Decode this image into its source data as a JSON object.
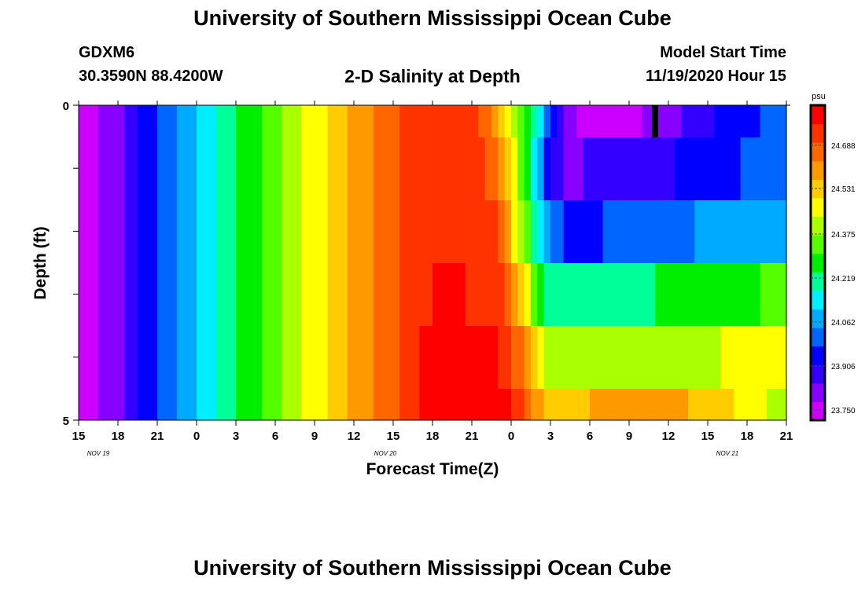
{
  "page": {
    "title_top": "University of Southern Mississippi Ocean Cube",
    "title_bottom": "University of Southern Mississippi Ocean Cube",
    "station": "GDXM6",
    "coords": "30.3590N 88.4200W",
    "subtitle": "2-D Salinity at Depth",
    "model_start_label": "Model Start Time",
    "model_start_value": "11/19/2020 Hour 15"
  },
  "chart_data": {
    "type": "heatmap",
    "title": "2-D Salinity at Depth",
    "xlabel": "Forecast Time(Z)",
    "ylabel": "Depth (ft)",
    "x_tick_labels": [
      "15",
      "18",
      "21",
      "0",
      "3",
      "6",
      "9",
      "12",
      "15",
      "18",
      "21",
      "0",
      "3",
      "6",
      "9",
      "12",
      "15",
      "18",
      "21"
    ],
    "date_labels": [
      "NOV 19",
      "NOV 20",
      "NOV 21"
    ],
    "y_tick_labels": [
      "0",
      "5"
    ],
    "ylim": [
      0,
      5
    ],
    "colorbar": {
      "unit": "psu",
      "tick_labels": [
        "24.688",
        "24.531",
        "24.375",
        "24.219",
        "24.062",
        "23.906",
        "23.750"
      ],
      "range": [
        23.69,
        24.84
      ],
      "colors": [
        "#cc00ff",
        "#8800ff",
        "#3300ff",
        "#0000ff",
        "#0066ff",
        "#00aaff",
        "#00eeff",
        "#00ff99",
        "#00ee00",
        "#55ff00",
        "#aaff00",
        "#ffff00",
        "#ffcc00",
        "#ff9900",
        "#ff6600",
        "#ff3300",
        "#ff0000"
      ]
    },
    "depth_layers": [
      0,
      1,
      2,
      3,
      4
    ],
    "series": [
      {
        "depth": 0,
        "times": [
          0,
          3,
          6,
          8,
          10,
          12,
          14,
          16,
          18,
          20,
          22,
          24,
          26,
          28,
          30,
          32,
          33,
          34,
          35,
          36,
          37,
          38,
          39,
          40,
          42,
          44,
          46,
          48,
          50,
          52,
          54
        ],
        "values": [
          23.72,
          23.8,
          23.97,
          24.05,
          24.13,
          24.23,
          24.3,
          24.39,
          24.47,
          24.55,
          24.62,
          24.69,
          24.75,
          24.77,
          24.72,
          24.6,
          24.45,
          24.3,
          24.15,
          23.98,
          23.85,
          23.75,
          23.72,
          23.72,
          23.74,
          23.77,
          23.82,
          23.88,
          23.93,
          23.96,
          23.98
        ]
      },
      {
        "depth": 1,
        "times": [
          0,
          3,
          6,
          8,
          10,
          12,
          14,
          16,
          18,
          20,
          22,
          24,
          26,
          28,
          30,
          32,
          33,
          34,
          35,
          36,
          37,
          38,
          39,
          40,
          42,
          44,
          46,
          48,
          50,
          52,
          54
        ],
        "values": [
          23.72,
          23.8,
          23.97,
          24.05,
          24.13,
          24.23,
          24.3,
          24.39,
          24.47,
          24.55,
          24.62,
          24.69,
          24.75,
          24.77,
          24.74,
          24.65,
          24.5,
          24.3,
          24.1,
          23.85,
          23.82,
          23.82,
          23.83,
          23.84,
          23.86,
          23.88,
          23.9,
          23.92,
          23.95,
          23.98,
          24.0
        ]
      },
      {
        "depth": 2,
        "times": [
          0,
          3,
          6,
          8,
          10,
          12,
          14,
          16,
          18,
          20,
          22,
          24,
          26,
          28,
          30,
          32,
          33,
          34,
          35,
          36,
          37,
          38,
          39,
          40,
          42,
          44,
          46,
          48,
          50,
          52,
          54
        ],
        "values": [
          23.72,
          23.8,
          23.97,
          24.05,
          24.13,
          24.23,
          24.3,
          24.39,
          24.47,
          24.55,
          24.62,
          24.69,
          24.75,
          24.77,
          24.75,
          24.7,
          24.55,
          24.35,
          24.15,
          24.0,
          23.96,
          23.95,
          23.95,
          23.96,
          23.98,
          24.0,
          24.02,
          24.04,
          24.05,
          24.07,
          24.09
        ]
      },
      {
        "depth": 3,
        "times": [
          0,
          3,
          6,
          8,
          10,
          12,
          14,
          16,
          18,
          20,
          22,
          24,
          26,
          28,
          30,
          32,
          33,
          34,
          35,
          36,
          37,
          38,
          39,
          40,
          42,
          44,
          46,
          48,
          50,
          52,
          54
        ],
        "values": [
          23.72,
          23.8,
          23.97,
          24.05,
          24.13,
          24.23,
          24.3,
          24.39,
          24.47,
          24.55,
          24.62,
          24.69,
          24.76,
          24.78,
          24.77,
          24.74,
          24.65,
          24.5,
          24.32,
          24.2,
          24.19,
          24.19,
          24.19,
          24.2,
          24.21,
          24.23,
          24.25,
          24.27,
          24.29,
          24.3,
          24.32
        ]
      },
      {
        "depth": 4,
        "times": [
          0,
          3,
          6,
          8,
          10,
          12,
          14,
          16,
          18,
          20,
          22,
          24,
          26,
          28,
          30,
          32,
          33,
          34,
          35,
          36,
          37,
          38,
          39,
          40,
          42,
          44,
          46,
          48,
          50,
          52,
          54
        ],
        "values": [
          23.72,
          23.8,
          23.97,
          24.05,
          24.13,
          24.23,
          24.3,
          24.39,
          24.47,
          24.55,
          24.62,
          24.69,
          24.77,
          24.8,
          24.8,
          24.78,
          24.72,
          24.62,
          24.5,
          24.4,
          24.38,
          24.38,
          24.38,
          24.39,
          24.4,
          24.41,
          24.42,
          24.43,
          24.44,
          24.45,
          24.46
        ]
      },
      {
        "depth": 4.5,
        "times": [
          0,
          3,
          6,
          8,
          10,
          12,
          14,
          16,
          18,
          20,
          22,
          24,
          26,
          28,
          30,
          32,
          33,
          34,
          35,
          36,
          37,
          38,
          39,
          40,
          42,
          44,
          46,
          48,
          50,
          52,
          54
        ],
        "values": [
          23.72,
          23.8,
          23.97,
          24.05,
          24.13,
          24.23,
          24.3,
          24.39,
          24.47,
          24.55,
          24.62,
          24.69,
          24.77,
          24.81,
          24.82,
          24.81,
          24.78,
          24.7,
          24.6,
          24.55,
          24.55,
          24.56,
          24.57,
          24.58,
          24.6,
          24.6,
          24.58,
          24.55,
          24.5,
          24.45,
          24.4
        ]
      }
    ]
  }
}
